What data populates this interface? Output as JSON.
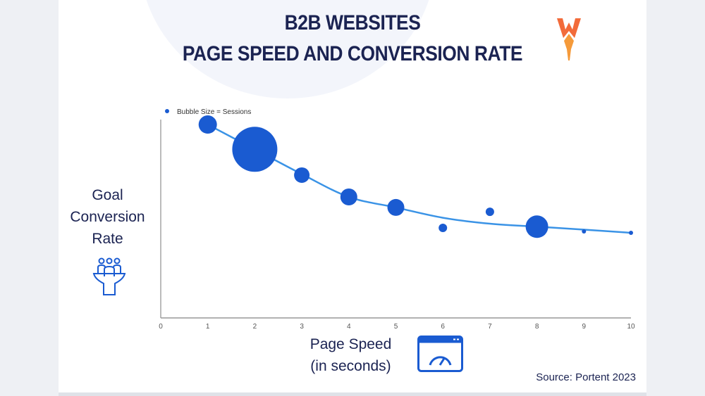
{
  "header": {
    "title_line1": "B2B WEBSITES",
    "title_line2": "PAGE SPEED AND CONVERSION RATE",
    "logo_text": "W"
  },
  "axis_labels": {
    "y": [
      "Goal",
      "Conversion",
      "Rate"
    ],
    "x": [
      "Page Speed",
      "(in seconds)"
    ]
  },
  "source": "Source: Portent 2023",
  "icons": {
    "y": "funnel-people-icon",
    "x": "speedometer-window-icon"
  },
  "colors": {
    "bubble": "#1a5bd1",
    "trend": "#3a93e6",
    "text": "#1b2352",
    "logo": "#f26b3a"
  },
  "chart_data": {
    "type": "scatter",
    "subtype": "bubble",
    "title": "B2B WEBSITES PAGE SPEED AND CONVERSION RATE",
    "xlabel": "Page Speed (in seconds)",
    "ylabel": "Goal Conversion Rate",
    "xlim": [
      0,
      10
    ],
    "ylim": [
      0,
      100
    ],
    "y_units": "relative (no y tick labels shown)",
    "x_ticks": [
      "0",
      "1",
      "2",
      "3",
      "4",
      "5",
      "6",
      "7",
      "8",
      "9",
      "10"
    ],
    "legend": {
      "label": "Bubble Size = Sessions",
      "position": "top-left"
    },
    "points": [
      {
        "x": 1,
        "y": 97.5,
        "size": 13
      },
      {
        "x": 2,
        "y": 85,
        "size": 32
      },
      {
        "x": 3,
        "y": 72,
        "size": 11
      },
      {
        "x": 4,
        "y": 61,
        "size": 12
      },
      {
        "x": 5,
        "y": 55.7,
        "size": 12
      },
      {
        "x": 6,
        "y": 45.4,
        "size": 6
      },
      {
        "x": 7,
        "y": 53.5,
        "size": 6
      },
      {
        "x": 8,
        "y": 46,
        "size": 16
      },
      {
        "x": 9,
        "y": 43.6,
        "size": 3
      },
      {
        "x": 10,
        "y": 42.9,
        "size": 3
      }
    ],
    "trendline": {
      "x": [
        1,
        2,
        3,
        4,
        5,
        6,
        7,
        8,
        9,
        10
      ],
      "y": [
        97.5,
        85,
        72.5,
        61,
        55.7,
        50.5,
        47.5,
        46,
        44.5,
        42.9
      ]
    }
  }
}
